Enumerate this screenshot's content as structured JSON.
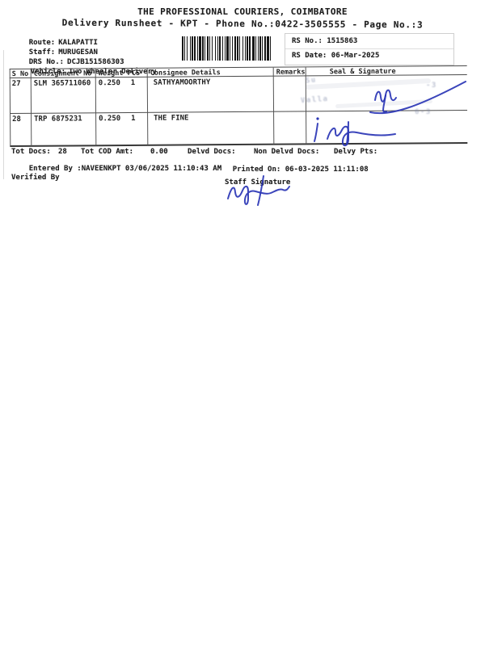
{
  "header": {
    "title": "THE PROFESSIONAL COURIERS, COIMBATORE",
    "subtitle": "Delivery Runsheet - KPT - Phone No.:0422-3505555 - Page No.:3"
  },
  "info": {
    "route_label": "Route:",
    "route": "KALAPATTI",
    "staff_label": "Staff:",
    "staff": "MURUGESAN",
    "drs_label": "DRS No.:",
    "drs_no": "DCJB151586303",
    "vehicle_label": "Vehicle:",
    "vehicle": "Two Wheeler Delivery",
    "rs_no_label": "RS No.:",
    "rs_no": "1515863",
    "rs_date_label": "RS Date:",
    "rs_date": "06-Mar-2025"
  },
  "barcode": {
    "pattern": "211213112122113121122112131211221211311212212113121121223112112112213112"
  },
  "table": {
    "headers": [
      "S No",
      "Consignment No",
      "Weight",
      "PCS",
      "Consignee Details",
      "Remarks",
      "Seal & Signature"
    ],
    "rows": [
      {
        "s_no": "27",
        "consignment_no": "SLM 365711060",
        "weight": "0.250",
        "pcs": "1",
        "consignee": "SATHYAMOORTHY",
        "remarks": ""
      },
      {
        "s_no": "28",
        "consignment_no": "TRP 6875231",
        "weight": "0.250",
        "pcs": "1",
        "consignee": "THE FINE",
        "remarks": ""
      }
    ]
  },
  "stamp": {
    "fragments": [
      "Su",
      "Valla",
      "-3",
      "6-3"
    ]
  },
  "summary": {
    "tot_docs_label": "Tot Docs:",
    "tot_docs": "28",
    "tot_cod_label": "Tot COD Amt:",
    "tot_cod": "0.00",
    "delvd_label": "Delvd Docs:",
    "non_delvd_label": "Non Delvd Docs:",
    "delvy_pts_label": "Delvy Pts:",
    "entered_label": "Entered By :",
    "entered_value": "NAVEENKPT 03/06/2025 11:10:43 AM",
    "printed_label": "Printed On:",
    "printed_value": "06-03-2025 11:11:08",
    "verified_label": "Verified By",
    "staff_sig_label": "Staff Signature"
  },
  "colors": {
    "ink_blue": "#2a35b5",
    "line_dark": "#4a4a4a",
    "paper": "#ffffff"
  }
}
